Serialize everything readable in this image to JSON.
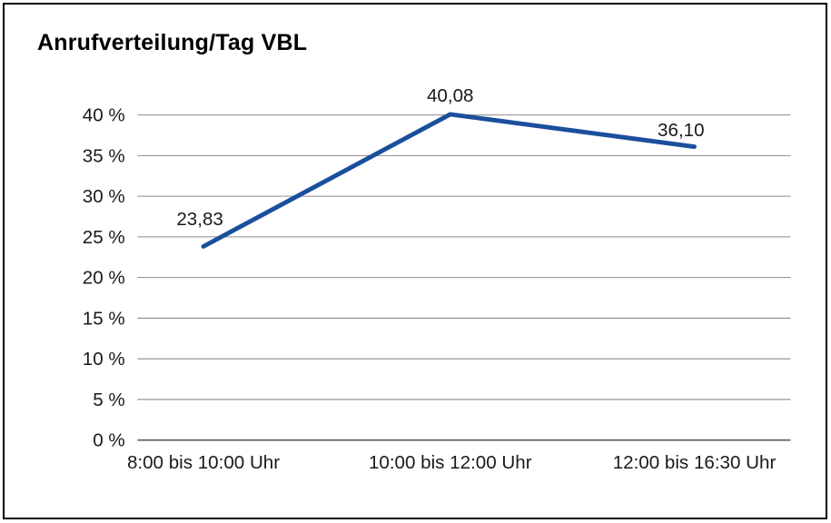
{
  "title": "Anrufverteilung/Tag VBL",
  "chart_data": {
    "type": "line",
    "title": "Anrufverteilung/Tag VBL",
    "categories": [
      "8:00 bis 10:00 Uhr",
      "10:00 bis 12:00 Uhr",
      "12:00 bis 16:30 Uhr"
    ],
    "values": [
      23.83,
      40.08,
      36.1
    ],
    "data_labels": [
      "23,83",
      "40,08",
      "36,10"
    ],
    "xlabel": "",
    "ylabel": "",
    "ylim": [
      0,
      40
    ],
    "ytick_step": 5,
    "ytick_labels": [
      "0 %",
      "5 %",
      "10 %",
      "15 %",
      "20 %",
      "25 %",
      "30 %",
      "35 %",
      "40 %"
    ],
    "grid": true,
    "legend_position": "none"
  },
  "colors": {
    "line": "#1b4f9c",
    "gridline": "#8c8c8c",
    "axis": "#5a5a5a",
    "text": "#1a1a1a",
    "border": "#000000",
    "background": "#ffffff"
  }
}
